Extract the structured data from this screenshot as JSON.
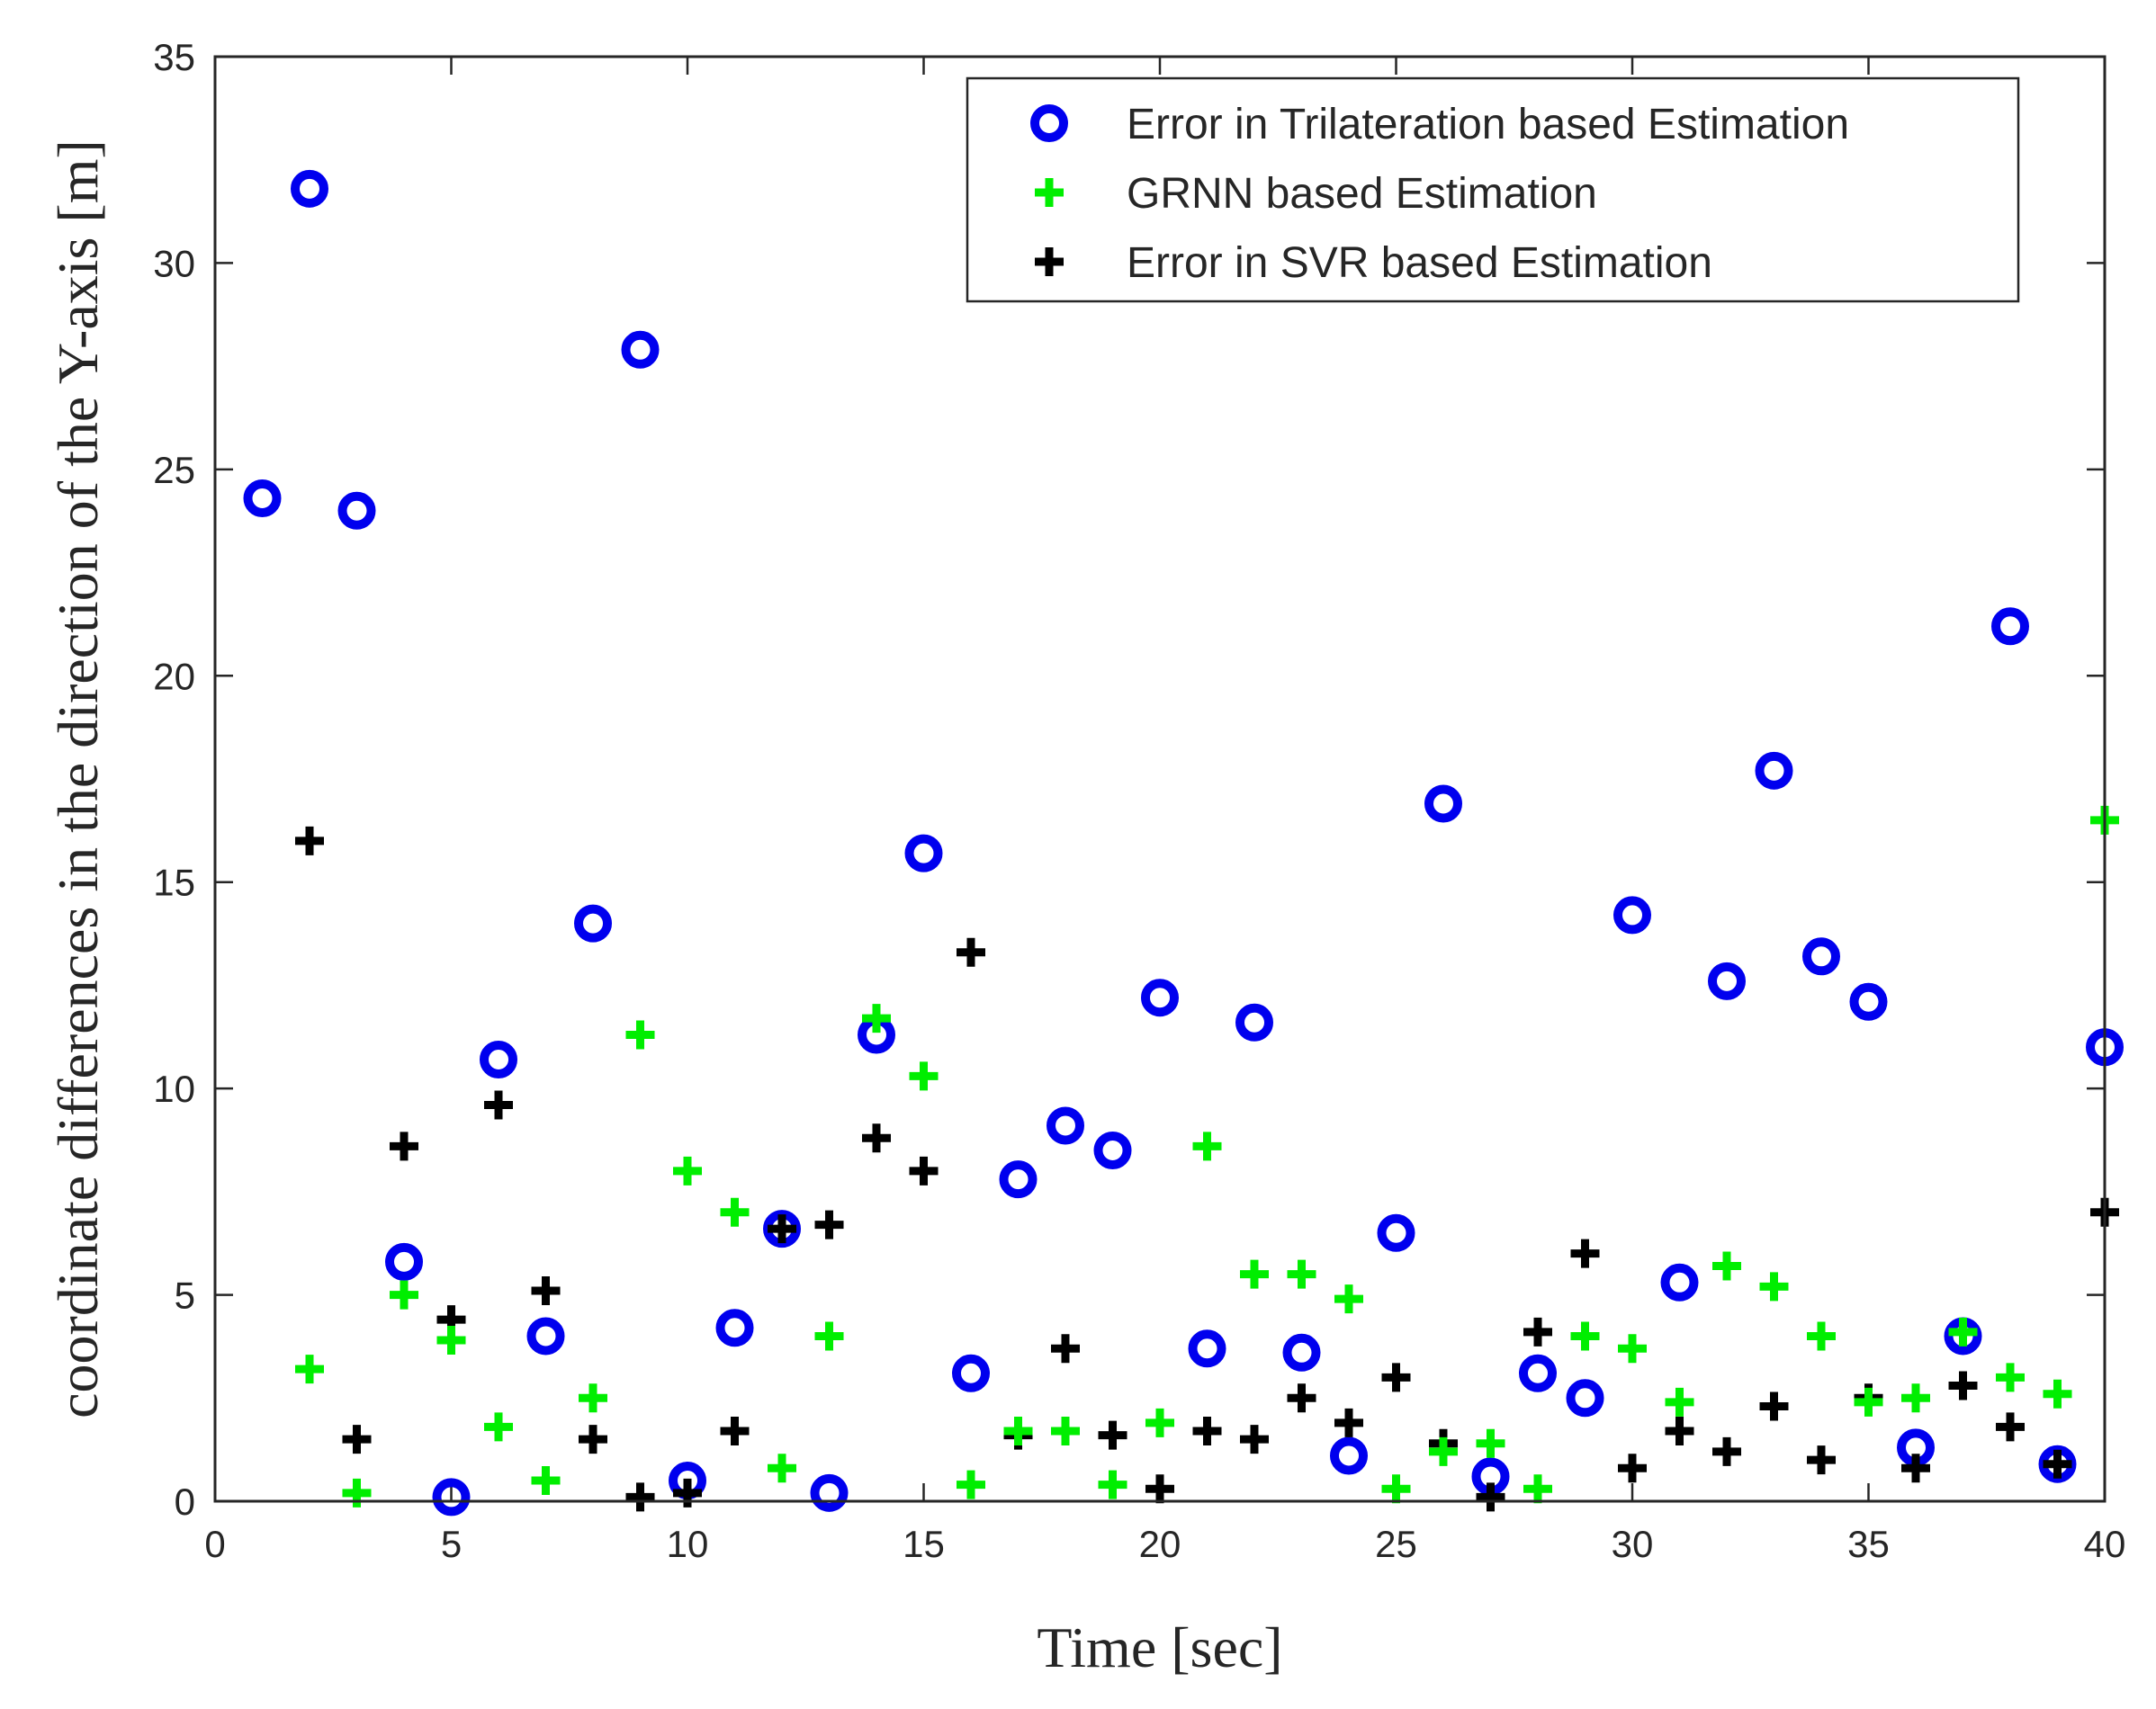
{
  "chart_data": {
    "type": "scatter",
    "title": "",
    "xlabel": "Time [sec]",
    "ylabel": "coordinate differences in the direction of the Y-axis [m]",
    "xlim": [
      0,
      40
    ],
    "ylim": [
      0,
      35
    ],
    "xticks": [
      0,
      5,
      10,
      15,
      20,
      25,
      30,
      35,
      40
    ],
    "yticks": [
      0,
      5,
      10,
      15,
      20,
      25,
      30,
      35
    ],
    "grid": false,
    "legend_position": "top-right",
    "x": [
      1,
      2,
      3,
      4,
      5,
      6,
      7,
      8,
      9,
      10,
      11,
      12,
      13,
      14,
      15,
      16,
      17,
      18,
      19,
      20,
      21,
      22,
      23,
      24,
      25,
      26,
      27,
      28,
      29,
      30,
      31,
      32,
      33,
      34,
      35,
      36,
      37,
      38,
      39,
      40
    ],
    "series": [
      {
        "name": "Error in Trilateration based Estimation",
        "marker": "circle",
        "color": "#0000ee",
        "values": [
          24.3,
          31.8,
          24.0,
          5.8,
          0.1,
          10.7,
          4.0,
          14.0,
          27.9,
          0.5,
          4.2,
          6.6,
          0.2,
          11.3,
          15.7,
          3.1,
          7.8,
          9.1,
          8.5,
          12.2,
          3.7,
          11.6,
          3.6,
          1.1,
          6.5,
          16.9,
          0.6,
          3.1,
          2.5,
          14.2,
          5.3,
          12.6,
          17.7,
          13.2,
          12.1,
          1.3,
          4.0,
          21.2,
          0.9,
          11.0
        ]
      },
      {
        "name": "GRNN based Estimation",
        "marker": "plus",
        "color": "#00ee00",
        "values": [
          null,
          3.2,
          0.2,
          5.0,
          3.9,
          1.8,
          0.5,
          2.5,
          11.3,
          8.0,
          7.0,
          0.8,
          4.0,
          11.7,
          10.3,
          0.4,
          1.7,
          1.7,
          0.4,
          1.9,
          8.6,
          5.5,
          5.5,
          4.9,
          0.3,
          1.2,
          1.4,
          0.3,
          4.0,
          3.7,
          2.4,
          5.7,
          5.2,
          4.0,
          2.4,
          2.5,
          4.1,
          3.0,
          2.6,
          16.5
        ]
      },
      {
        "name": "Error in SVR based Estimation",
        "marker": "plus",
        "color": "#000000",
        "values": [
          null,
          16.0,
          1.5,
          8.6,
          4.4,
          9.6,
          5.1,
          1.5,
          0.1,
          0.2,
          1.7,
          6.6,
          6.7,
          8.8,
          8.0,
          13.3,
          1.6,
          3.7,
          1.6,
          0.3,
          1.7,
          1.5,
          2.5,
          1.9,
          3.0,
          1.4,
          0.1,
          4.1,
          6.0,
          0.8,
          1.7,
          1.2,
          2.3,
          1.0,
          2.5,
          0.8,
          2.8,
          1.8,
          0.9,
          7.0
        ]
      }
    ]
  }
}
